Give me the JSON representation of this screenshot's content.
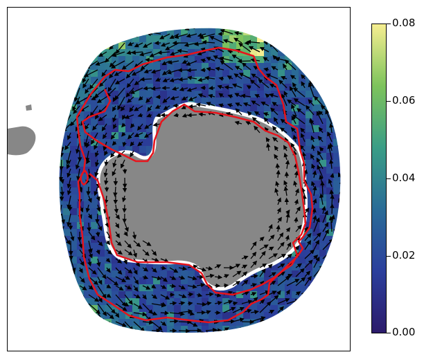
{
  "chart_data": {
    "type": "heatmap",
    "title": "",
    "xlabel": "",
    "ylabel": "",
    "colorbar": {
      "ticks": [
        "0.00",
        "0.02",
        "0.04",
        "0.06",
        "0.08"
      ],
      "values": [
        0.0,
        0.02,
        0.04,
        0.06,
        0.08
      ],
      "range": [
        0.0,
        0.08
      ],
      "colormap": [
        "#2c1b6b",
        "#2b3f9c",
        "#2a6c97",
        "#3a9d86",
        "#7dc35c",
        "#f6ee91"
      ]
    },
    "overlays": [
      "velocity-vectors",
      "boundary-contour"
    ],
    "colors": {
      "land": "#878787",
      "contour": "#e8141c",
      "arrows": "#000000"
    }
  }
}
